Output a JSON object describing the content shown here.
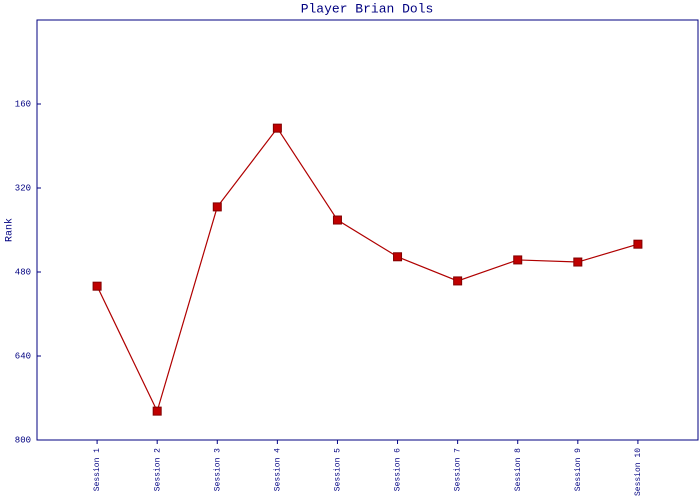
{
  "chart_data": {
    "type": "line",
    "title": "Player Brian Dols",
    "y_label": "Rank",
    "categories": [
      "Session 1",
      "Session 2",
      "Session 3",
      "Session 4",
      "Session 5",
      "Session 6",
      "Session 7",
      "Session 8",
      "Session 9",
      "Session 10"
    ],
    "series": [
      {
        "name": "Rank",
        "color": "#b00000",
        "values": [
          507,
          745,
          356,
          206,
          381,
          451,
          497,
          457,
          461,
          427
        ]
      }
    ],
    "ylim": [
      800,
      0
    ],
    "yticks": [
      160,
      320,
      480,
      640,
      800
    ]
  }
}
